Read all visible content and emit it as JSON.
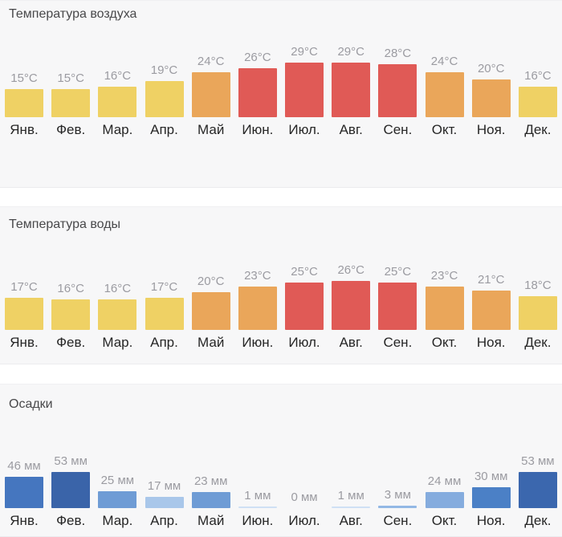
{
  "page": {
    "background": "#ffffff",
    "section_background": "#f7f7f8"
  },
  "palette": {
    "temp_low_yellow": "#efd164",
    "temp_mid_orange": "#eaa65a",
    "temp_high_red": "#e05a56"
  },
  "chart_data": [
    {
      "type": "bar",
      "title": "Температура воздуха",
      "unit": "°C",
      "categories": [
        "Янв.",
        "Фев.",
        "Мар.",
        "Апр.",
        "Май",
        "Июн.",
        "Июл.",
        "Авг.",
        "Сен.",
        "Окт.",
        "Ноя.",
        "Дек."
      ],
      "values": [
        15,
        15,
        16,
        19,
        24,
        26,
        29,
        29,
        28,
        24,
        20,
        16
      ],
      "value_labels": [
        "15°C",
        "15°C",
        "16°C",
        "19°C",
        "24°C",
        "26°C",
        "29°C",
        "29°C",
        "28°C",
        "24°C",
        "20°C",
        "16°C"
      ],
      "bar_colors": [
        "#efd164",
        "#efd164",
        "#efd164",
        "#efd164",
        "#eaa65a",
        "#e05a56",
        "#e05a56",
        "#e05a56",
        "#e05a56",
        "#eaa65a",
        "#eaa65a",
        "#efd164"
      ],
      "ylim": [
        0,
        29
      ],
      "grid": false,
      "legend": "none"
    },
    {
      "type": "bar",
      "title": "Температура воды",
      "unit": "°C",
      "categories": [
        "Янв.",
        "Фев.",
        "Мар.",
        "Апр.",
        "Май",
        "Июн.",
        "Июл.",
        "Авг.",
        "Сен.",
        "Окт.",
        "Ноя.",
        "Дек."
      ],
      "values": [
        17,
        16,
        16,
        17,
        20,
        23,
        25,
        26,
        25,
        23,
        21,
        18
      ],
      "value_labels": [
        "17°C",
        "16°C",
        "16°C",
        "17°C",
        "20°C",
        "23°C",
        "25°C",
        "26°C",
        "25°C",
        "23°C",
        "21°C",
        "18°C"
      ],
      "bar_colors": [
        "#efd164",
        "#efd164",
        "#efd164",
        "#efd164",
        "#eaa65a",
        "#eaa65a",
        "#e05a56",
        "#e05a56",
        "#e05a56",
        "#eaa65a",
        "#eaa65a",
        "#efd164"
      ],
      "ylim": [
        0,
        26
      ],
      "grid": false,
      "legend": "none"
    },
    {
      "type": "bar",
      "title": "Осадки",
      "unit": "мм",
      "categories": [
        "Янв.",
        "Фев.",
        "Мар.",
        "Апр.",
        "Май",
        "Июн.",
        "Июл.",
        "Авг.",
        "Сен.",
        "Окт.",
        "Ноя.",
        "Дек."
      ],
      "values": [
        46,
        53,
        25,
        17,
        23,
        1,
        0,
        1,
        3,
        24,
        30,
        53
      ],
      "value_labels": [
        "46 мм",
        "53 мм",
        "25 мм",
        "17 мм",
        "23 мм",
        "1 мм",
        "0 мм",
        "1 мм",
        "3 мм",
        "24 мм",
        "30 мм",
        "53 мм"
      ],
      "bar_colors": [
        "#4576bf",
        "#3a64a9",
        "#6f9cd5",
        "#a9c7ea",
        "#6f9cd5",
        "#cfe0f4",
        null,
        "#cfe0f4",
        "#93b8e5",
        "#85acde",
        "#4b80c6",
        "#3b67ae"
      ],
      "ylim": [
        0,
        53
      ],
      "grid": false,
      "legend": "none"
    }
  ]
}
